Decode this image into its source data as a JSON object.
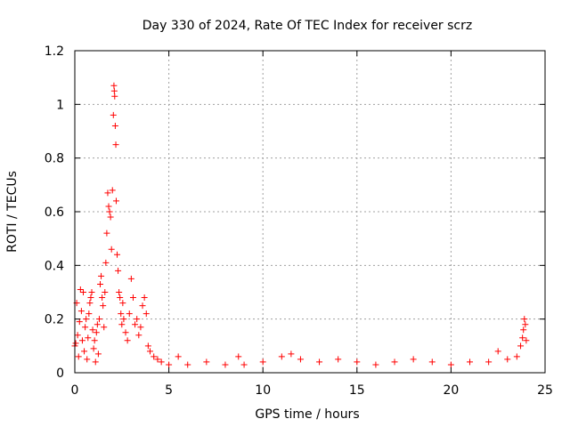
{
  "chart_data": {
    "type": "scatter",
    "title": "Day 330 of 2024, Rate Of TEC Index for receiver scrz",
    "xlabel": "GPS time / hours",
    "ylabel": "ROTI / TECUs",
    "xlim": [
      0,
      25
    ],
    "ylim": [
      0,
      1.2
    ],
    "x_ticks": [
      0,
      5,
      10,
      15,
      20,
      25
    ],
    "x_tick_labels": [
      "0",
      "5",
      "10",
      "15",
      "20",
      "25"
    ],
    "y_ticks": [
      0,
      0.2,
      0.4,
      0.6,
      0.8,
      1.0,
      1.2
    ],
    "y_tick_labels": [
      "0",
      "0.2",
      "0.4",
      "0.6",
      "0.8",
      "1",
      "1.2"
    ],
    "grid": true,
    "marker": "+",
    "series": [
      {
        "name": "ROTI",
        "color": "#ff0000",
        "points": [
          [
            0.0,
            0.1
          ],
          [
            0.05,
            0.11
          ],
          [
            0.1,
            0.26
          ],
          [
            0.15,
            0.14
          ],
          [
            0.2,
            0.06
          ],
          [
            0.25,
            0.19
          ],
          [
            0.3,
            0.31
          ],
          [
            0.35,
            0.23
          ],
          [
            0.4,
            0.12
          ],
          [
            0.45,
            0.3
          ],
          [
            0.5,
            0.08
          ],
          [
            0.55,
            0.17
          ],
          [
            0.6,
            0.2
          ],
          [
            0.65,
            0.05
          ],
          [
            0.7,
            0.13
          ],
          [
            0.75,
            0.22
          ],
          [
            0.8,
            0.26
          ],
          [
            0.85,
            0.28
          ],
          [
            0.9,
            0.3
          ],
          [
            0.95,
            0.16
          ],
          [
            1.0,
            0.09
          ],
          [
            1.05,
            0.12
          ],
          [
            1.1,
            0.04
          ],
          [
            1.15,
            0.15
          ],
          [
            1.2,
            0.18
          ],
          [
            1.25,
            0.07
          ],
          [
            1.3,
            0.2
          ],
          [
            1.35,
            0.33
          ],
          [
            1.4,
            0.36
          ],
          [
            1.45,
            0.28
          ],
          [
            1.5,
            0.25
          ],
          [
            1.55,
            0.17
          ],
          [
            1.6,
            0.3
          ],
          [
            1.65,
            0.41
          ],
          [
            1.7,
            0.52
          ],
          [
            1.75,
            0.67
          ],
          [
            1.8,
            0.62
          ],
          [
            1.85,
            0.6
          ],
          [
            1.9,
            0.58
          ],
          [
            1.95,
            0.46
          ],
          [
            2.0,
            0.68
          ],
          [
            2.05,
            0.96
          ],
          [
            2.08,
            1.07
          ],
          [
            2.1,
            1.05
          ],
          [
            2.12,
            1.03
          ],
          [
            2.15,
            0.92
          ],
          [
            2.18,
            0.85
          ],
          [
            2.2,
            0.64
          ],
          [
            2.25,
            0.44
          ],
          [
            2.3,
            0.38
          ],
          [
            2.35,
            0.3
          ],
          [
            2.4,
            0.28
          ],
          [
            2.45,
            0.22
          ],
          [
            2.5,
            0.18
          ],
          [
            2.55,
            0.26
          ],
          [
            2.6,
            0.2
          ],
          [
            2.7,
            0.15
          ],
          [
            2.8,
            0.12
          ],
          [
            2.9,
            0.22
          ],
          [
            3.0,
            0.35
          ],
          [
            3.1,
            0.28
          ],
          [
            3.2,
            0.18
          ],
          [
            3.3,
            0.2
          ],
          [
            3.4,
            0.14
          ],
          [
            3.5,
            0.17
          ],
          [
            3.6,
            0.25
          ],
          [
            3.7,
            0.28
          ],
          [
            3.8,
            0.22
          ],
          [
            3.9,
            0.1
          ],
          [
            4.0,
            0.08
          ],
          [
            4.2,
            0.06
          ],
          [
            4.4,
            0.05
          ],
          [
            4.6,
            0.04
          ],
          [
            5.0,
            0.03
          ],
          [
            5.5,
            0.06
          ],
          [
            6.0,
            0.03
          ],
          [
            7.0,
            0.04
          ],
          [
            8.0,
            0.03
          ],
          [
            8.7,
            0.06
          ],
          [
            9.0,
            0.03
          ],
          [
            10.0,
            0.04
          ],
          [
            11.0,
            0.06
          ],
          [
            11.5,
            0.07
          ],
          [
            12.0,
            0.05
          ],
          [
            13.0,
            0.04
          ],
          [
            14.0,
            0.05
          ],
          [
            15.0,
            0.04
          ],
          [
            16.0,
            0.03
          ],
          [
            17.0,
            0.04
          ],
          [
            18.0,
            0.05
          ],
          [
            19.0,
            0.04
          ],
          [
            20.0,
            0.03
          ],
          [
            21.0,
            0.04
          ],
          [
            22.0,
            0.04
          ],
          [
            22.5,
            0.08
          ],
          [
            23.0,
            0.05
          ],
          [
            23.5,
            0.06
          ],
          [
            23.7,
            0.1
          ],
          [
            23.8,
            0.13
          ],
          [
            23.85,
            0.16
          ],
          [
            23.9,
            0.2
          ],
          [
            23.95,
            0.18
          ],
          [
            24.0,
            0.12
          ]
        ]
      }
    ]
  }
}
